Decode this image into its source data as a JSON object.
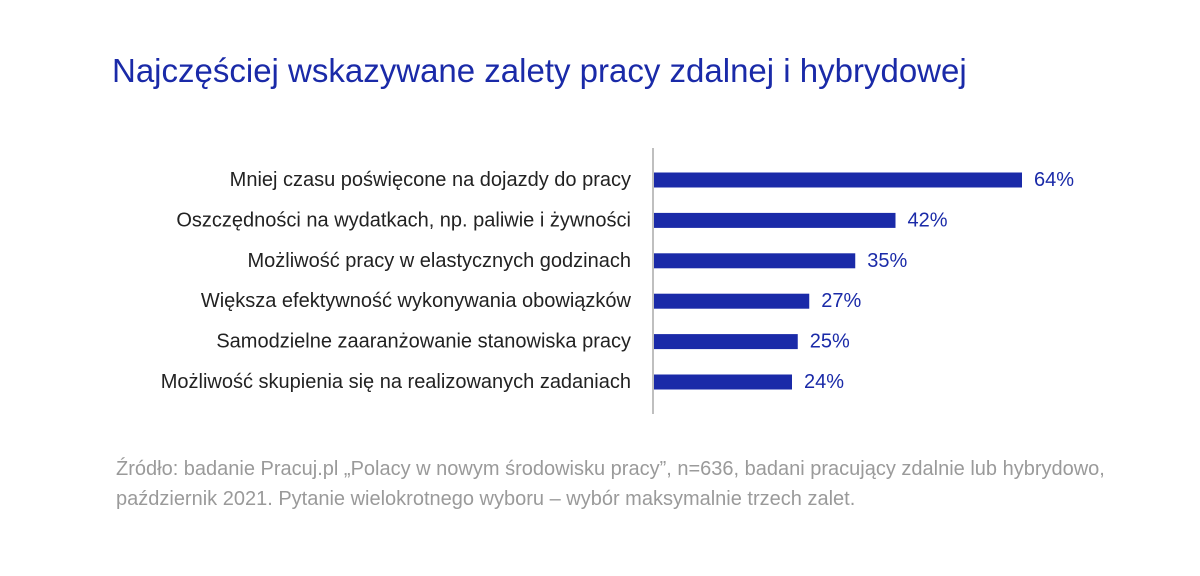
{
  "chart_data": {
    "type": "bar",
    "orientation": "horizontal",
    "title": "Najczęściej wskazywane zalety pracy zdalnej i hybrydowej",
    "categories": [
      "Mniej czasu poświęcone na dojazdy do pracy",
      "Oszczędności na wydatkach, np. paliwie i żywności",
      "Możliwość pracy w elastycznych godzinach",
      "Większa efektywność wykonywania obowiązków",
      "Samodzielne zaaranżowanie stanowiska pracy",
      "Możliwość skupienia się na realizowanych zadaniach"
    ],
    "values": [
      64,
      42,
      35,
      27,
      25,
      24
    ],
    "value_labels": [
      "64%",
      "42%",
      "35%",
      "27%",
      "25%",
      "24%"
    ],
    "xlim": [
      0,
      64
    ],
    "grid": false,
    "bar_color": "#1a2aa8",
    "axis_color": "#bfbfbf"
  },
  "source_note": "Źródło: badanie Pracuj.pl „Polacy w nowym środowisku pracy”, n=636, badani pracujący zdalnie lub hybrydowo, październik 2021. Pytanie wielokrotnego wyboru – wybór maksymalnie trzech zalet."
}
